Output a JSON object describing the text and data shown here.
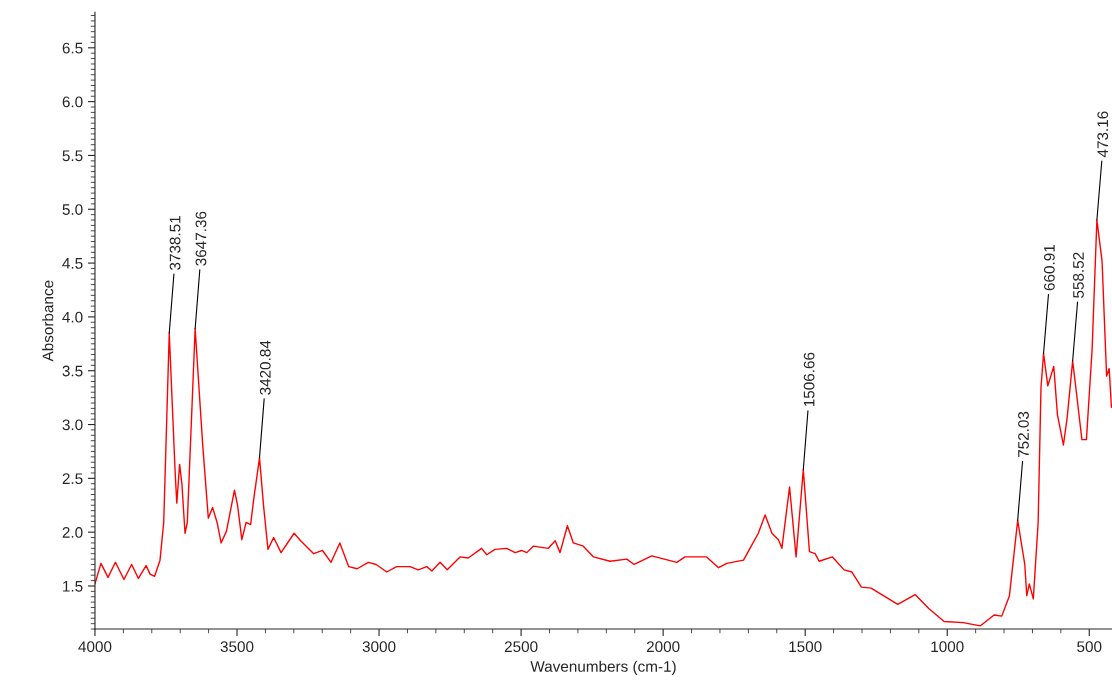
{
  "chart_data": {
    "type": "line",
    "xlabel": "Wavenumbers (cm-1)",
    "ylabel": "Absorbance",
    "xlim": [
      4000,
      420
    ],
    "ylim": [
      1.1,
      6.83
    ],
    "xticks": [
      4000,
      3500,
      3000,
      2500,
      2000,
      1500,
      1000,
      500
    ],
    "yticks": [
      1.5,
      {
        "value": 2,
        "label": "2.0"
      },
      2.5,
      {
        "value": 3,
        "label": "3.0"
      },
      3.5,
      {
        "value": 4,
        "label": "4.0"
      },
      4.5,
      {
        "value": 5,
        "label": "5.0"
      },
      5.5,
      {
        "value": 6,
        "label": "6.0"
      },
      6.5
    ],
    "grid": false,
    "marker": "none",
    "line_style": "solid",
    "series": [
      {
        "color": "#ff0000",
        "x": [
          4000,
          3979,
          3954,
          3928,
          3898,
          3871,
          3847,
          3820,
          3806,
          3790,
          3771,
          3758,
          3738.51,
          3718,
          3712,
          3702,
          3694,
          3683,
          3675,
          3647.36,
          3621,
          3601,
          3586,
          3570,
          3556,
          3537,
          3509,
          3498,
          3483,
          3468,
          3452,
          3442,
          3420.84,
          3406,
          3391,
          3371,
          3345,
          3299,
          3276,
          3230,
          3199,
          3169,
          3138,
          3107,
          3077,
          3038,
          3010,
          2973,
          2938,
          2891,
          2862,
          2832,
          2814,
          2785,
          2760,
          2715,
          2686,
          2639,
          2621,
          2592,
          2551,
          2521,
          2498,
          2480,
          2457,
          2404,
          2380,
          2363,
          2337,
          2316,
          2281,
          2245,
          2187,
          2128,
          2102,
          2040,
          1952,
          1923,
          1847,
          1805,
          1776,
          1717,
          1688,
          1665,
          1641,
          1617,
          1594,
          1582,
          1555,
          1532,
          1506.66,
          1485,
          1465,
          1451,
          1404,
          1363,
          1336,
          1302,
          1268,
          1174,
          1113,
          1065,
          1011,
          944,
          883,
          835,
          808,
          781,
          752.03,
          727,
          720,
          711,
          697,
          680,
          670,
          660.91,
          646,
          625,
          612,
          591,
          578,
          558.52,
          544,
          526,
          510,
          490,
          473.16,
          455,
          439,
          430,
          422
        ],
        "values": [
          1.52,
          1.71,
          1.58,
          1.72,
          1.56,
          1.7,
          1.57,
          1.69,
          1.61,
          1.59,
          1.74,
          2.09,
          3.85,
          2.57,
          2.27,
          2.63,
          2.45,
          1.99,
          2.09,
          3.89,
          2.82,
          2.13,
          2.23,
          2.09,
          1.9,
          2.01,
          2.39,
          2.25,
          1.93,
          2.09,
          2.07,
          2.29,
          2.69,
          2.23,
          1.84,
          1.95,
          1.81,
          1.99,
          1.92,
          1.8,
          1.83,
          1.72,
          1.9,
          1.68,
          1.66,
          1.72,
          1.7,
          1.63,
          1.68,
          1.68,
          1.65,
          1.68,
          1.64,
          1.72,
          1.65,
          1.77,
          1.76,
          1.85,
          1.79,
          1.84,
          1.85,
          1.81,
          1.83,
          1.81,
          1.87,
          1.85,
          1.92,
          1.81,
          2.06,
          1.9,
          1.87,
          1.77,
          1.73,
          1.75,
          1.7,
          1.78,
          1.72,
          1.77,
          1.77,
          1.67,
          1.71,
          1.74,
          1.88,
          1.99,
          2.16,
          1.99,
          1.93,
          1.85,
          2.42,
          1.77,
          2.58,
          1.82,
          1.8,
          1.73,
          1.77,
          1.65,
          1.63,
          1.49,
          1.48,
          1.33,
          1.42,
          1.29,
          1.17,
          1.16,
          1.13,
          1.23,
          1.22,
          1.41,
          2.11,
          1.7,
          1.41,
          1.52,
          1.38,
          2.09,
          3.34,
          3.66,
          3.36,
          3.54,
          3.09,
          2.81,
          3.06,
          3.59,
          3.27,
          2.86,
          2.86,
          3.7,
          4.9,
          4.52,
          3.45,
          3.52,
          3.16
        ]
      }
    ],
    "annotations": [
      {
        "text": "3738.51",
        "x": 3738.51,
        "y": 3.85
      },
      {
        "text": "3647.36",
        "x": 3647.36,
        "y": 3.89
      },
      {
        "text": "3420.84",
        "x": 3420.84,
        "y": 2.69
      },
      {
        "text": "1506.66",
        "x": 1506.66,
        "y": 2.58
      },
      {
        "text": "752.03",
        "x": 752.03,
        "y": 2.11
      },
      {
        "text": "660.91",
        "x": 660.91,
        "y": 3.66
      },
      {
        "text": "558.52",
        "x": 558.52,
        "y": 3.59
      },
      {
        "text": "473.16",
        "x": 473.16,
        "y": 4.9
      }
    ]
  }
}
